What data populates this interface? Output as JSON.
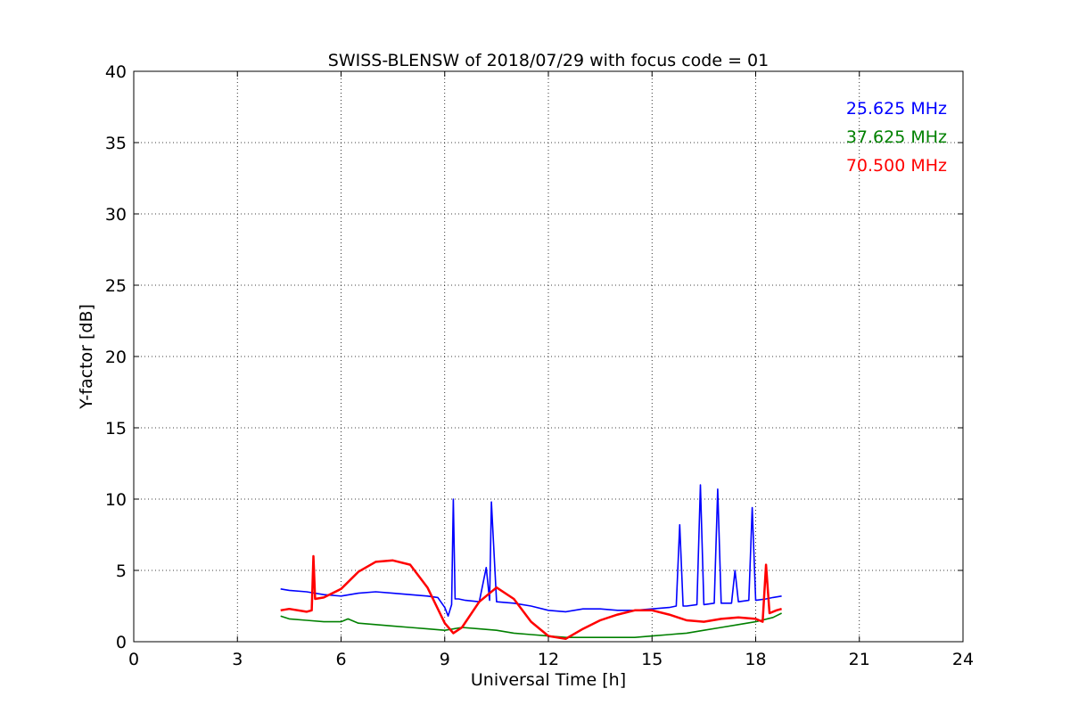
{
  "chart_data": {
    "type": "line",
    "title": "SWISS-BLENSW of 2018/07/29 with focus code = 01",
    "xlabel": "Universal Time [h]",
    "ylabel": "Y-factor [dB]",
    "xlim": [
      0,
      24
    ],
    "ylim": [
      0,
      40
    ],
    "xticks": [
      0,
      3,
      6,
      9,
      12,
      15,
      18,
      21,
      24
    ],
    "yticks": [
      0,
      5,
      10,
      15,
      20,
      25,
      30,
      35,
      40
    ],
    "grid": true,
    "legend_position": "top-right",
    "series": [
      {
        "name": "25.625 MHz",
        "color": "#0000ff",
        "x": [
          4.25,
          4.5,
          5.0,
          5.5,
          6.0,
          6.5,
          7.0,
          7.5,
          8.0,
          8.5,
          8.8,
          9.0,
          9.1,
          9.2,
          9.25,
          9.3,
          9.4,
          9.6,
          10.0,
          10.2,
          10.3,
          10.35,
          10.5,
          11.0,
          11.5,
          12.0,
          12.5,
          13.0,
          13.5,
          14.0,
          14.5,
          15.0,
          15.5,
          15.7,
          15.8,
          15.9,
          16.0,
          16.3,
          16.4,
          16.5,
          16.8,
          16.9,
          17.0,
          17.3,
          17.4,
          17.5,
          17.8,
          17.9,
          18.0,
          18.3,
          18.5,
          18.75
        ],
        "y": [
          3.7,
          3.6,
          3.5,
          3.3,
          3.2,
          3.4,
          3.5,
          3.4,
          3.3,
          3.2,
          3.1,
          2.4,
          1.8,
          2.6,
          10.0,
          3.0,
          3.0,
          2.9,
          2.8,
          5.2,
          2.9,
          9.8,
          2.8,
          2.7,
          2.5,
          2.2,
          2.1,
          2.3,
          2.3,
          2.2,
          2.2,
          2.3,
          2.4,
          2.5,
          8.2,
          2.5,
          2.5,
          2.6,
          11.0,
          2.6,
          2.7,
          10.7,
          2.7,
          2.7,
          5.0,
          2.8,
          2.9,
          9.4,
          2.9,
          3.0,
          3.1,
          3.2
        ]
      },
      {
        "name": "37.625 MHz",
        "color": "#008000",
        "x": [
          4.25,
          4.5,
          5.0,
          5.5,
          6.0,
          6.2,
          6.5,
          7.0,
          7.5,
          8.0,
          8.5,
          9.0,
          9.5,
          10.0,
          10.5,
          11.0,
          11.5,
          12.0,
          12.5,
          13.0,
          13.5,
          14.0,
          14.5,
          15.0,
          15.5,
          16.0,
          16.5,
          17.0,
          17.5,
          18.0,
          18.5,
          18.75
        ],
        "y": [
          1.8,
          1.6,
          1.5,
          1.4,
          1.4,
          1.6,
          1.3,
          1.2,
          1.1,
          1.0,
          0.9,
          0.8,
          1.0,
          0.9,
          0.8,
          0.6,
          0.5,
          0.4,
          0.3,
          0.3,
          0.3,
          0.3,
          0.3,
          0.4,
          0.5,
          0.6,
          0.8,
          1.0,
          1.2,
          1.4,
          1.7,
          2.0
        ]
      },
      {
        "name": "70.500 MHz",
        "color": "#ff0000",
        "x": [
          4.25,
          4.5,
          5.0,
          5.15,
          5.2,
          5.25,
          5.5,
          6.0,
          6.5,
          7.0,
          7.5,
          8.0,
          8.5,
          9.0,
          9.25,
          9.5,
          10.0,
          10.5,
          11.0,
          11.5,
          12.0,
          12.5,
          13.0,
          13.5,
          14.0,
          14.5,
          15.0,
          15.5,
          16.0,
          16.5,
          17.0,
          17.5,
          18.0,
          18.2,
          18.3,
          18.4,
          18.6,
          18.75
        ],
        "y": [
          2.2,
          2.3,
          2.1,
          2.2,
          6.0,
          3.0,
          3.1,
          3.7,
          4.9,
          5.6,
          5.7,
          5.4,
          3.8,
          1.3,
          0.6,
          1.0,
          2.8,
          3.8,
          3.0,
          1.4,
          0.4,
          0.2,
          0.9,
          1.5,
          1.9,
          2.2,
          2.2,
          1.9,
          1.5,
          1.4,
          1.6,
          1.7,
          1.6,
          1.4,
          5.4,
          2.0,
          2.2,
          2.3
        ]
      }
    ]
  }
}
